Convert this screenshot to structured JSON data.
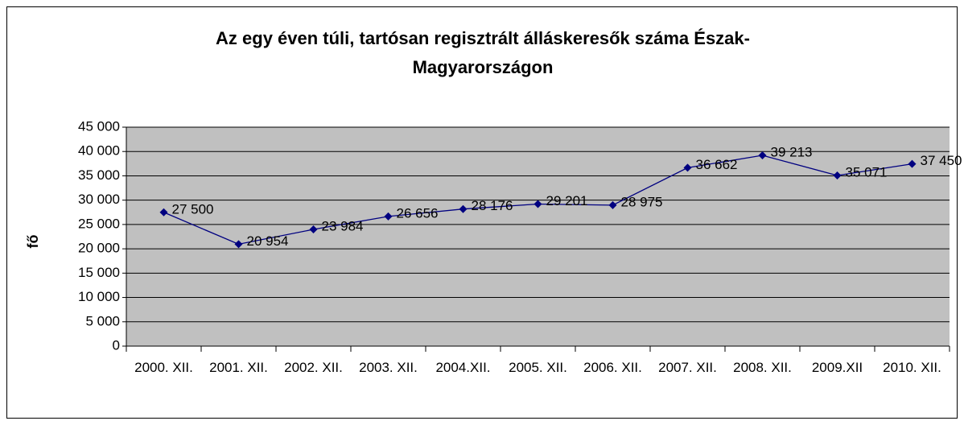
{
  "chart_data": {
    "type": "line",
    "title": "Az egy éven túli, tartósan regisztrált álláskeresők száma Észak-Magyarországon",
    "y_label": "fő",
    "categories": [
      "2000. XII.",
      "2001. XII.",
      "2002. XII.",
      "2003. XII.",
      "2004.XII.",
      "2005. XII.",
      "2006. XII.",
      "2007. XII.",
      "2008. XII.",
      "2009.XII",
      "2010. XII."
    ],
    "series": [
      {
        "name": "fő",
        "color": "#000080",
        "values": [
          27500,
          20954,
          23984,
          26656,
          28176,
          29201,
          28975,
          36662,
          39213,
          35071,
          37450
        ],
        "value_labels": [
          "27 500",
          "20 954",
          "23 984",
          "26 656",
          "28 176",
          "29 201",
          "28 975",
          "36 662",
          "39 213",
          "35 071",
          "37 450"
        ]
      }
    ],
    "ylim": [
      0,
      45000
    ],
    "yticks": [
      0,
      {
        "value": 5000,
        "label": "5 000"
      },
      {
        "value": 10000,
        "label": "10 000"
      },
      {
        "value": 15000,
        "label": "15 000"
      },
      {
        "value": 20000,
        "label": "20 000"
      },
      {
        "value": 25000,
        "label": "25 000"
      },
      {
        "value": 30000,
        "label": "30 000"
      },
      {
        "value": 35000,
        "label": "35 000"
      },
      {
        "value": 40000,
        "label": "40 000"
      },
      {
        "value": 45000,
        "label": "45 000"
      }
    ],
    "grid": true,
    "plot_background": "#c0c0c0"
  }
}
